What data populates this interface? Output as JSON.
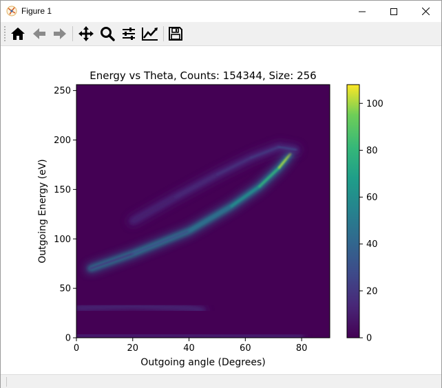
{
  "window": {
    "title": "Figure 1"
  },
  "toolbar": {
    "icons": [
      "home-icon",
      "back-arrow-icon",
      "forward-arrow-icon",
      "pan-icon",
      "zoom-icon",
      "configure-subplots-icon",
      "edit-axis-icon",
      "save-icon"
    ]
  },
  "colors": {
    "background_plot": "#440154",
    "colormap": "viridis",
    "toolbar_bg": "#f0f0f0"
  },
  "chart_data": {
    "type": "heatmap",
    "title": "Energy vs Theta, Counts: 154344, Size: 256",
    "xlabel": "Outgoing angle (Degrees)",
    "ylabel": "Outgoing Energy (eV)",
    "xlim": [
      0,
      90
    ],
    "ylim": [
      0,
      256
    ],
    "xticks": [
      "0",
      "20",
      "40",
      "60",
      "80"
    ],
    "xtick_values": [
      0,
      20,
      40,
      60,
      80
    ],
    "yticks": [
      "0",
      "50",
      "100",
      "150",
      "200",
      "250"
    ],
    "ytick_values": [
      0,
      50,
      100,
      150,
      200,
      250
    ],
    "colorbar": {
      "min": 0,
      "max": 108,
      "ticks": [
        "0",
        "20",
        "40",
        "60",
        "80",
        "100"
      ],
      "tick_values": [
        0,
        20,
        40,
        60,
        80,
        100
      ]
    },
    "features": [
      {
        "name": "lower bright arc",
        "points": [
          [
            5,
            70
          ],
          [
            20,
            85
          ],
          [
            40,
            108
          ],
          [
            55,
            133
          ],
          [
            65,
            153
          ],
          [
            72,
            172
          ],
          [
            76,
            186
          ]
        ],
        "peak": 100
      },
      {
        "name": "upper faint arc",
        "points": [
          [
            20,
            118
          ],
          [
            35,
            142
          ],
          [
            50,
            165
          ],
          [
            62,
            182
          ],
          [
            72,
            193
          ],
          [
            78,
            190
          ]
        ],
        "peak": 25
      },
      {
        "name": "low-energy band",
        "points": [
          [
            0,
            30
          ],
          [
            20,
            32
          ],
          [
            40,
            30
          ],
          [
            45,
            28
          ]
        ],
        "peak": 8
      },
      {
        "name": "baseline band",
        "points": [
          [
            0,
            3
          ],
          [
            30,
            3
          ],
          [
            60,
            2
          ],
          [
            80,
            1
          ]
        ],
        "peak": 6
      }
    ]
  }
}
